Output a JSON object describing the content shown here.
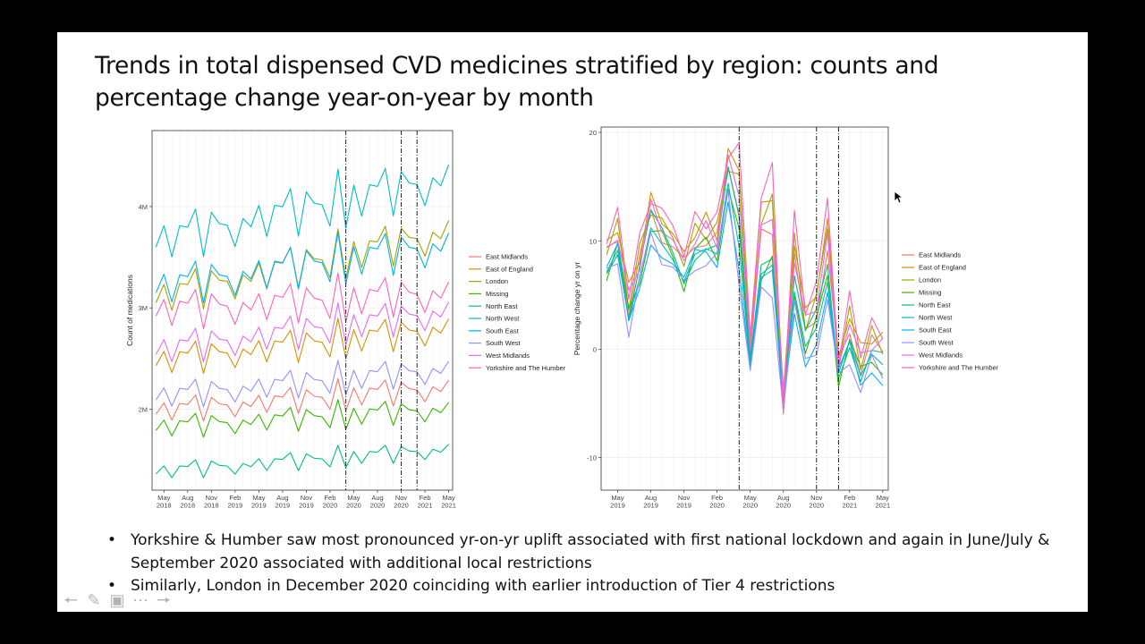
{
  "slide": {
    "title_line1": "Trends in total dispensed CVD medicines stratified by region: counts and",
    "title_line2": "percentage change year-on-year by month",
    "bullets": [
      "Yorkshire & Humber saw most pronounced yr-on-yr uplift associated with first national lockdown and again in June/July & September 2020 associated with additional local restrictions",
      "Similarly, London in December 2020 coinciding with earlier introduction of Tier 4 restrictions"
    ]
  },
  "nav_icons": [
    "arrow-left-icon",
    "pen-icon",
    "slides-icon",
    "more-icon",
    "arrow-right-icon"
  ],
  "chart_data": [
    {
      "type": "line",
      "ylabel": "Count of medications",
      "xlabel": "",
      "x_start": "2018-04",
      "x_end": "2021-05",
      "ylim": [
        1200000,
        4750000
      ],
      "y_ticks": [
        {
          "value": 2000000,
          "label": "2M"
        },
        {
          "value": 3000000,
          "label": "3M"
        },
        {
          "value": 4000000,
          "label": "4M"
        }
      ],
      "x_ticks": [
        {
          "month": "2018-05",
          "label": [
            "May",
            "2018"
          ]
        },
        {
          "month": "2018-08",
          "label": [
            "Aug",
            "2018"
          ]
        },
        {
          "month": "2018-11",
          "label": [
            "Nov",
            "2018"
          ]
        },
        {
          "month": "2019-02",
          "label": [
            "Feb",
            "2019"
          ]
        },
        {
          "month": "2019-05",
          "label": [
            "May",
            "2019"
          ]
        },
        {
          "month": "2019-08",
          "label": [
            "Aug",
            "2019"
          ]
        },
        {
          "month": "2019-11",
          "label": [
            "Nov",
            "2019"
          ]
        },
        {
          "month": "2020-02",
          "label": [
            "Feb",
            "2020"
          ]
        },
        {
          "month": "2020-05",
          "label": [
            "May",
            "2020"
          ]
        },
        {
          "month": "2020-08",
          "label": [
            "Aug",
            "2020"
          ]
        },
        {
          "month": "2020-11",
          "label": [
            "Nov",
            "2020"
          ]
        },
        {
          "month": "2021-02",
          "label": [
            "Feb",
            "2021"
          ]
        },
        {
          "month": "2021-05",
          "label": [
            "May",
            "2021"
          ]
        }
      ],
      "vlines": [
        "2020-04",
        "2020-11",
        "2021-01"
      ],
      "grid": true,
      "legend_position": "right",
      "series": [
        {
          "name": "East Midlands",
          "color": "#F8766D",
          "base": 1950000,
          "trend": 230000
        },
        {
          "name": "East of England",
          "color": "#D89000",
          "base": 2430000,
          "trend": 330000
        },
        {
          "name": "London",
          "color": "#A3A500",
          "base": 3050000,
          "trend": 650000
        },
        {
          "name": "Missing",
          "color": "#39B600",
          "base": 1790000,
          "trend": 180000
        },
        {
          "name": "North East",
          "color": "#00BF7D",
          "base": 1360000,
          "trend": 220000
        },
        {
          "name": "North West",
          "color": "#00BFC4",
          "base": 3600000,
          "trend": 620000
        },
        {
          "name": "South East",
          "color": "#00B0F6",
          "base": 3150000,
          "trend": 420000
        },
        {
          "name": "South West",
          "color": "#9590FF",
          "base": 2090000,
          "trend": 270000
        },
        {
          "name": "West Midlands",
          "color": "#E76BF3",
          "base": 2540000,
          "trend": 380000
        },
        {
          "name": "Yorkshire and The Humber",
          "color": "#FF62BC",
          "base": 2920000,
          "trend": 180000
        }
      ]
    },
    {
      "type": "line",
      "ylabel": "Percentage change yr on yr",
      "xlabel": "",
      "x_start": "2019-04",
      "x_end": "2021-05",
      "ylim": [
        -13,
        20.5
      ],
      "y_ticks": [
        {
          "value": -10,
          "label": "-10"
        },
        {
          "value": 0,
          "label": "0"
        },
        {
          "value": 10,
          "label": "10"
        },
        {
          "value": 20,
          "label": "20"
        }
      ],
      "x_ticks": [
        {
          "month": "2019-05",
          "label": [
            "May",
            "2019"
          ]
        },
        {
          "month": "2019-08",
          "label": [
            "Aug",
            "2019"
          ]
        },
        {
          "month": "2019-11",
          "label": [
            "Nov",
            "2019"
          ]
        },
        {
          "month": "2020-02",
          "label": [
            "Feb",
            "2020"
          ]
        },
        {
          "month": "2020-05",
          "label": [
            "May",
            "2020"
          ]
        },
        {
          "month": "2020-08",
          "label": [
            "Aug",
            "2020"
          ]
        },
        {
          "month": "2020-11",
          "label": [
            "Nov",
            "2020"
          ]
        },
        {
          "month": "2021-02",
          "label": [
            "Feb",
            "2021"
          ]
        },
        {
          "month": "2021-05",
          "label": [
            "May",
            "2021"
          ]
        }
      ],
      "vlines": [
        "2020-04",
        "2020-11",
        "2021-01"
      ],
      "grid": true,
      "legend_position": "right",
      "months": [
        "2019-04",
        "2019-05",
        "2019-06",
        "2019-07",
        "2019-08",
        "2019-09",
        "2019-10",
        "2019-11",
        "2019-12",
        "2020-01",
        "2020-02",
        "2020-03",
        "2020-04",
        "2020-05",
        "2020-06",
        "2020-07",
        "2020-08",
        "2020-09",
        "2020-10",
        "2020-11",
        "2020-12",
        "2021-01",
        "2021-02",
        "2021-03",
        "2021-04",
        "2021-05"
      ],
      "base_values": [
        8,
        10,
        3.5,
        7.5,
        12,
        10.5,
        9,
        7,
        9.5,
        10,
        9.5,
        16,
        12,
        -1,
        9,
        10,
        -5,
        7,
        1,
        3,
        8,
        -2,
        1.5,
        -2,
        0,
        -1
      ],
      "series": [
        {
          "name": "East Midlands",
          "color": "#F8766D",
          "offset": 0.4
        },
        {
          "name": "East of England",
          "color": "#D89000",
          "offset": 1.6
        },
        {
          "name": "London",
          "color": "#A3A500",
          "offset": 1.2
        },
        {
          "name": "Missing",
          "color": "#39B600",
          "offset": -0.6
        },
        {
          "name": "North East",
          "color": "#00BF7D",
          "offset": -0.2
        },
        {
          "name": "North West",
          "color": "#00BFC4",
          "offset": -0.9
        },
        {
          "name": "South East",
          "color": "#00B0F6",
          "offset": -1.3
        },
        {
          "name": "South West",
          "color": "#9590FF",
          "offset": -1.6
        },
        {
          "name": "West Midlands",
          "color": "#E76BF3",
          "offset": 0.9
        },
        {
          "name": "Yorkshire and The Humber",
          "color": "#FF62BC",
          "offset": 2.2
        }
      ]
    }
  ]
}
